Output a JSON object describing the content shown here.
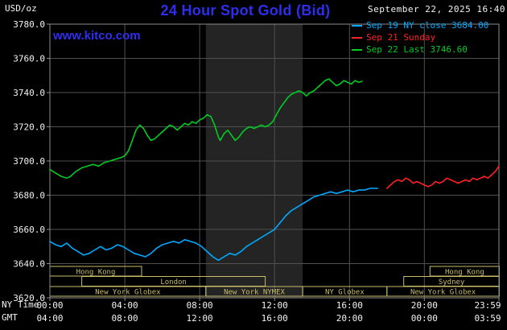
{
  "header": {
    "unit_label": "USD/oz",
    "title": "24 Hour Spot Gold (Bid)",
    "datetime": "September 22, 2025 16:40",
    "watermark": "www.kitco.com"
  },
  "legend": [
    {
      "label": "Sep 19 NY close 3684.00",
      "color": "#00aaff"
    },
    {
      "label": "Sep 21 Sunday",
      "color": "#ff2222"
    },
    {
      "label": "Sep 22 Last 3746.60",
      "color": "#00cc22"
    }
  ],
  "axes": {
    "ny_time_label": "NY Time",
    "gmt_label": "GMT",
    "x_ticks_hours": [
      0,
      4,
      8,
      12,
      16,
      20,
      23.983
    ],
    "x_tick_labels_ny": [
      "00:00",
      "04:00",
      "08:00",
      "12:00",
      "16:00",
      "20:00",
      "23:59"
    ],
    "x_tick_labels_gmt": [
      "04:00",
      "08:00",
      "12:00",
      "16:00",
      "20:00",
      "00:00",
      "03:59"
    ],
    "y_ticks": [
      3620,
      3640,
      3660,
      3680,
      3700,
      3720,
      3740,
      3760,
      3780
    ],
    "y_tick_labels": [
      "3620.0",
      "3640.0",
      "3660.0",
      "3680.0",
      "3700.0",
      "3720.0",
      "3740.0",
      "3760.0",
      "3780.0"
    ]
  },
  "sessions": {
    "rows": [
      {
        "boxes": [
          {
            "label": "Hong Kong",
            "start": 0,
            "end": 4.9
          },
          {
            "label": "Hong Kong",
            "start": 20.3,
            "end": 24
          }
        ]
      },
      {
        "boxes": [
          {
            "label": "London",
            "start": 1.7,
            "end": 11.5
          },
          {
            "label": "Sydney",
            "start": 18.9,
            "end": 24
          }
        ]
      },
      {
        "boxes": [
          {
            "label": "New York Globex",
            "start": 0,
            "end": 8.33
          },
          {
            "label": "New York NYMEX",
            "start": 8.33,
            "end": 13.5
          },
          {
            "label": "NY Globex",
            "start": 13.5,
            "end": 18.0
          },
          {
            "label": "New York Globex",
            "start": 18.0,
            "end": 24
          }
        ]
      }
    ]
  },
  "colors": {
    "background": "#000000",
    "brand": "#2e2ef0",
    "text": "#f2f2f2",
    "grid": "#505050",
    "frame": "#8c8c8c",
    "band": "#242424",
    "khaki": "#c9bc6a"
  },
  "chart_data": {
    "type": "line",
    "title": "24 Hour Spot Gold (Bid)",
    "xlabel": "NY Time",
    "ylabel": "USD/oz",
    "xlim_hours": [
      0,
      23.983
    ],
    "ylim": [
      3620,
      3780
    ],
    "grid": true,
    "legend_position": "top-right",
    "nymex_band_hours": [
      8.33,
      13.5
    ],
    "series": [
      {
        "name": "Sep 19 NY close 3684.00",
        "color": "#00aaff",
        "points": [
          [
            0,
            3653
          ],
          [
            0.3,
            3651
          ],
          [
            0.6,
            3650
          ],
          [
            0.9,
            3652
          ],
          [
            1.2,
            3649
          ],
          [
            1.5,
            3647
          ],
          [
            1.8,
            3645
          ],
          [
            2.1,
            3646
          ],
          [
            2.4,
            3648
          ],
          [
            2.7,
            3650
          ],
          [
            3,
            3648
          ],
          [
            3.3,
            3649
          ],
          [
            3.6,
            3651
          ],
          [
            3.9,
            3650
          ],
          [
            4.2,
            3648
          ],
          [
            4.5,
            3646
          ],
          [
            4.8,
            3645
          ],
          [
            5.1,
            3644
          ],
          [
            5.4,
            3646
          ],
          [
            5.7,
            3649
          ],
          [
            6,
            3651
          ],
          [
            6.3,
            3652
          ],
          [
            6.6,
            3653
          ],
          [
            6.9,
            3652
          ],
          [
            7.2,
            3654
          ],
          [
            7.5,
            3653
          ],
          [
            7.8,
            3652
          ],
          [
            8.1,
            3650
          ],
          [
            8.4,
            3647
          ],
          [
            8.7,
            3644
          ],
          [
            9,
            3642
          ],
          [
            9.3,
            3644
          ],
          [
            9.6,
            3646
          ],
          [
            9.9,
            3645
          ],
          [
            10.2,
            3647
          ],
          [
            10.5,
            3650
          ],
          [
            10.8,
            3652
          ],
          [
            11.1,
            3654
          ],
          [
            11.4,
            3656
          ],
          [
            11.7,
            3658
          ],
          [
            12,
            3660
          ],
          [
            12.3,
            3664
          ],
          [
            12.6,
            3668
          ],
          [
            12.9,
            3671
          ],
          [
            13.2,
            3673
          ],
          [
            13.5,
            3675
          ],
          [
            13.8,
            3677
          ],
          [
            14.1,
            3679
          ],
          [
            14.4,
            3680
          ],
          [
            14.7,
            3681
          ],
          [
            15,
            3682
          ],
          [
            15.3,
            3681
          ],
          [
            15.6,
            3682
          ],
          [
            15.9,
            3683
          ],
          [
            16.2,
            3682
          ],
          [
            16.5,
            3683
          ],
          [
            16.8,
            3683
          ],
          [
            17.1,
            3684
          ],
          [
            17.5,
            3684
          ]
        ]
      },
      {
        "name": "Sep 21 Sunday",
        "color": "#ff2222",
        "points": [
          [
            18,
            3684
          ],
          [
            18.2,
            3686
          ],
          [
            18.4,
            3688
          ],
          [
            18.6,
            3689
          ],
          [
            18.8,
            3688
          ],
          [
            19,
            3690
          ],
          [
            19.2,
            3689
          ],
          [
            19.4,
            3687
          ],
          [
            19.6,
            3688
          ],
          [
            19.8,
            3687
          ],
          [
            20,
            3686
          ],
          [
            20.2,
            3685
          ],
          [
            20.4,
            3686
          ],
          [
            20.6,
            3688
          ],
          [
            20.8,
            3687
          ],
          [
            21,
            3688
          ],
          [
            21.2,
            3690
          ],
          [
            21.4,
            3689
          ],
          [
            21.6,
            3688
          ],
          [
            21.8,
            3687
          ],
          [
            22,
            3688
          ],
          [
            22.2,
            3689
          ],
          [
            22.4,
            3688
          ],
          [
            22.6,
            3690
          ],
          [
            22.8,
            3689
          ],
          [
            23,
            3690
          ],
          [
            23.2,
            3691
          ],
          [
            23.4,
            3690
          ],
          [
            23.6,
            3692
          ],
          [
            23.8,
            3694
          ],
          [
            23.98,
            3697
          ]
        ]
      },
      {
        "name": "Sep 22 Last 3746.60",
        "color": "#00cc22",
        "points": [
          [
            0,
            3695
          ],
          [
            0.3,
            3693
          ],
          [
            0.6,
            3691
          ],
          [
            0.9,
            3690
          ],
          [
            1.1,
            3691
          ],
          [
            1.4,
            3694
          ],
          [
            1.7,
            3696
          ],
          [
            2,
            3697
          ],
          [
            2.3,
            3698
          ],
          [
            2.6,
            3697
          ],
          [
            2.9,
            3699
          ],
          [
            3.2,
            3700
          ],
          [
            3.5,
            3701
          ],
          [
            3.8,
            3702
          ],
          [
            4,
            3703
          ],
          [
            4.2,
            3706
          ],
          [
            4.4,
            3712
          ],
          [
            4.6,
            3718
          ],
          [
            4.8,
            3721
          ],
          [
            5,
            3719
          ],
          [
            5.2,
            3715
          ],
          [
            5.4,
            3712
          ],
          [
            5.6,
            3713
          ],
          [
            5.8,
            3715
          ],
          [
            6,
            3717
          ],
          [
            6.2,
            3719
          ],
          [
            6.4,
            3721
          ],
          [
            6.6,
            3720
          ],
          [
            6.8,
            3718
          ],
          [
            7,
            3720
          ],
          [
            7.2,
            3722
          ],
          [
            7.4,
            3721
          ],
          [
            7.6,
            3723
          ],
          [
            7.8,
            3722
          ],
          [
            8,
            3724
          ],
          [
            8.2,
            3725
          ],
          [
            8.4,
            3727
          ],
          [
            8.6,
            3726
          ],
          [
            8.8,
            3721
          ],
          [
            9,
            3714
          ],
          [
            9.1,
            3712
          ],
          [
            9.3,
            3716
          ],
          [
            9.5,
            3718
          ],
          [
            9.7,
            3715
          ],
          [
            9.9,
            3712
          ],
          [
            10.1,
            3714
          ],
          [
            10.3,
            3717
          ],
          [
            10.5,
            3719
          ],
          [
            10.7,
            3720
          ],
          [
            10.9,
            3719
          ],
          [
            11.1,
            3720
          ],
          [
            11.3,
            3721
          ],
          [
            11.5,
            3720
          ],
          [
            11.7,
            3721
          ],
          [
            11.9,
            3723
          ],
          [
            12.1,
            3727
          ],
          [
            12.3,
            3731
          ],
          [
            12.5,
            3734
          ],
          [
            12.7,
            3737
          ],
          [
            12.9,
            3739
          ],
          [
            13.1,
            3740
          ],
          [
            13.3,
            3741
          ],
          [
            13.5,
            3740
          ],
          [
            13.7,
            3738
          ],
          [
            13.9,
            3740
          ],
          [
            14.1,
            3741
          ],
          [
            14.3,
            3743
          ],
          [
            14.5,
            3745
          ],
          [
            14.7,
            3747
          ],
          [
            14.9,
            3748
          ],
          [
            15.1,
            3746
          ],
          [
            15.3,
            3744
          ],
          [
            15.5,
            3745
          ],
          [
            15.7,
            3747
          ],
          [
            15.9,
            3746
          ],
          [
            16.1,
            3745
          ],
          [
            16.3,
            3747
          ],
          [
            16.5,
            3746
          ],
          [
            16.67,
            3746.6
          ]
        ]
      }
    ]
  }
}
